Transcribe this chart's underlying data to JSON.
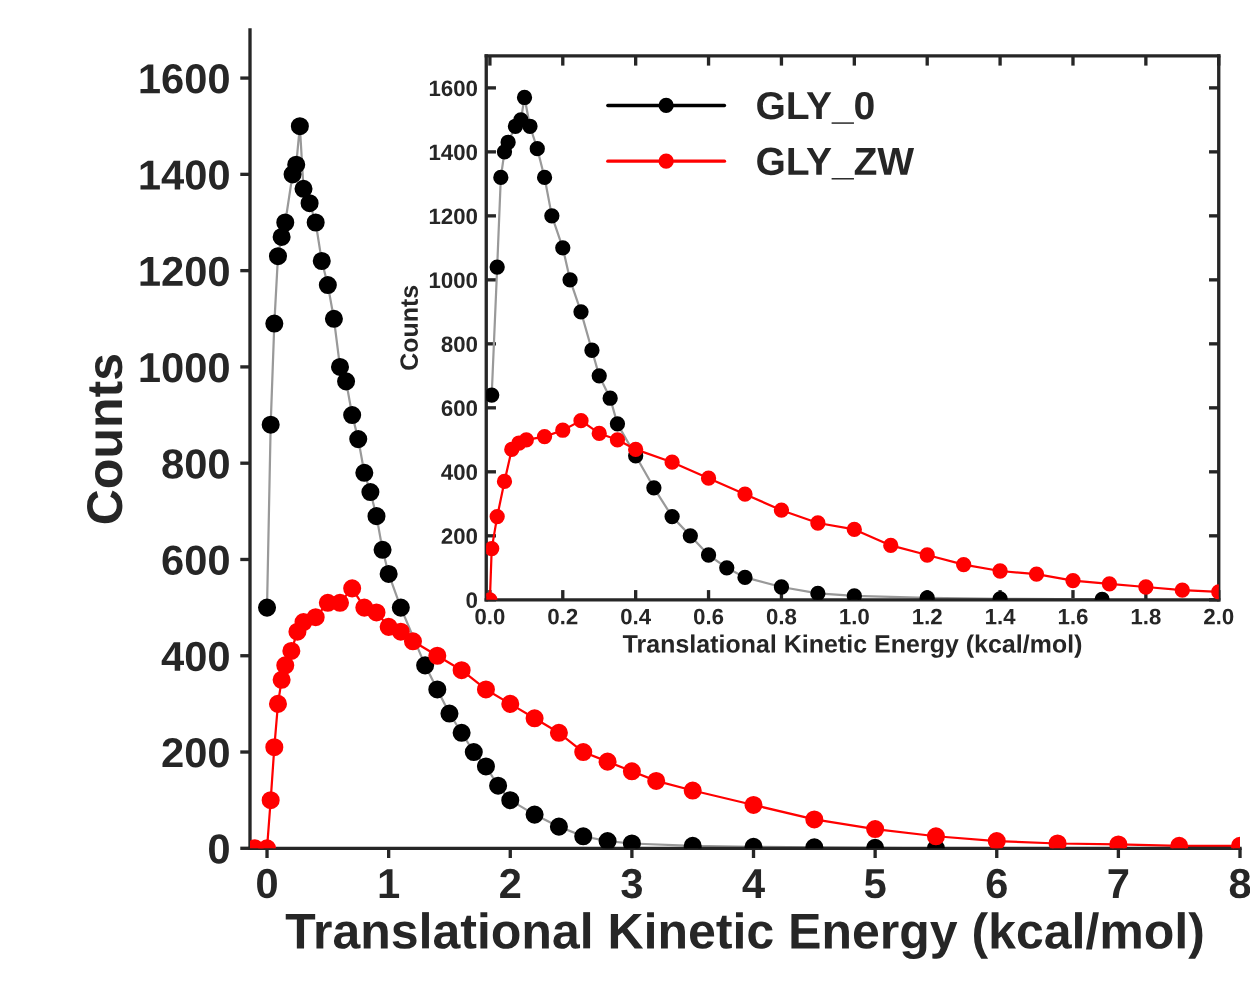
{
  "chart_data": [
    {
      "type": "line",
      "xlabel": "Translational Kinetic Energy (kcal/mol)",
      "ylabel": "Counts",
      "marker": "circle",
      "line_style": "solid",
      "legend": false,
      "grid": false,
      "xlim": [
        -0.14,
        8
      ],
      "ylim": [
        0,
        1700
      ],
      "xticks": [
        0,
        1,
        2,
        3,
        4,
        5,
        6,
        7,
        8
      ],
      "yticks": [
        0,
        200,
        400,
        600,
        800,
        1000,
        1200,
        1400,
        1600
      ],
      "series": [
        {
          "color": "#000000",
          "x": [
            0,
            0.03,
            0.06,
            0.09,
            0.12,
            0.15,
            0.21,
            0.24,
            0.27,
            0.3,
            0.35,
            0.4,
            0.45,
            0.5,
            0.55,
            0.6,
            0.65,
            0.7,
            0.75,
            0.8,
            0.85,
            0.9,
            0.95,
            1.0,
            1.1,
            1.3,
            1.4,
            1.5,
            1.6,
            1.7,
            1.8,
            1.9,
            2.0,
            2.2,
            2.4,
            2.6,
            2.8,
            3.0,
            3.5,
            4.0,
            4.5,
            5.0,
            5.5
          ],
          "values": [
            500,
            880,
            1090,
            1230,
            1270,
            1300,
            1400,
            1420,
            1500,
            1370,
            1340,
            1300,
            1220,
            1170,
            1100,
            1000,
            970,
            900,
            850,
            780,
            740,
            690,
            620,
            570,
            500,
            380,
            330,
            280,
            240,
            200,
            170,
            130,
            100,
            70,
            45,
            25,
            15,
            10,
            5,
            3,
            2,
            1,
            0
          ]
        },
        {
          "color": "#ff0000",
          "x": [
            -0.1,
            0,
            0.03,
            0.06,
            0.09,
            0.12,
            0.15,
            0.2,
            0.25,
            0.3,
            0.4,
            0.5,
            0.6,
            0.7,
            0.8,
            0.9,
            1.0,
            1.1,
            1.2,
            1.4,
            1.6,
            1.8,
            2.0,
            2.2,
            2.4,
            2.6,
            2.8,
            3.0,
            3.2,
            3.5,
            4.0,
            4.5,
            5.0,
            5.5,
            6.0,
            6.5,
            7.0,
            7.5,
            8.0
          ],
          "values": [
            0,
            0,
            100,
            210,
            300,
            350,
            380,
            410,
            450,
            470,
            480,
            510,
            510,
            540,
            500,
            490,
            460,
            450,
            430,
            400,
            370,
            330,
            300,
            270,
            240,
            200,
            180,
            160,
            140,
            120,
            90,
            60,
            40,
            25,
            15,
            10,
            8,
            5,
            5
          ]
        }
      ]
    },
    {
      "type": "line",
      "xlabel": "Translational Kinetic Energy (kcal/mol)",
      "ylabel": "Counts",
      "marker": "circle",
      "line_style": "solid",
      "legend": "top",
      "grid": false,
      "xlim": [
        -0.01,
        2
      ],
      "ylim": [
        0,
        1700
      ],
      "xticks": [
        {
          "value": 0,
          "label": "0.0"
        },
        0.2,
        0.4,
        0.6,
        0.8,
        {
          "value": 1,
          "label": "1.0"
        },
        1.2,
        1.4,
        1.6,
        1.8,
        {
          "value": 2,
          "label": "2.0"
        }
      ],
      "yticks": [
        0,
        200,
        400,
        600,
        800,
        1000,
        1200,
        1400,
        1600
      ],
      "series": [
        {
          "name": "GLY_0",
          "color": "#000000",
          "x": [
            0.005,
            0.02,
            0.03,
            0.04,
            0.05,
            0.07,
            0.085,
            0.095,
            0.11,
            0.13,
            0.15,
            0.17,
            0.2,
            0.22,
            0.25,
            0.28,
            0.3,
            0.33,
            0.35,
            0.4,
            0.45,
            0.5,
            0.55,
            0.6,
            0.65,
            0.7,
            0.8,
            0.9,
            1.0,
            1.2,
            1.4,
            1.68
          ],
          "values": [
            640,
            1040,
            1320,
            1400,
            1430,
            1480,
            1500,
            1570,
            1480,
            1410,
            1320,
            1200,
            1100,
            1000,
            900,
            780,
            700,
            630,
            550,
            450,
            350,
            260,
            200,
            140,
            100,
            70,
            40,
            20,
            12,
            6,
            3,
            1
          ]
        },
        {
          "name": "GLY_ZW",
          "color": "#ff0000",
          "x": [
            0,
            0.005,
            0.02,
            0.04,
            0.06,
            0.08,
            0.1,
            0.15,
            0.2,
            0.25,
            0.3,
            0.35,
            0.4,
            0.5,
            0.6,
            0.7,
            0.8,
            0.9,
            1.0,
            1.1,
            1.2,
            1.3,
            1.4,
            1.5,
            1.6,
            1.7,
            1.8,
            1.9,
            2.0
          ],
          "values": [
            0,
            160,
            260,
            370,
            470,
            490,
            500,
            510,
            530,
            560,
            520,
            500,
            470,
            430,
            380,
            330,
            280,
            240,
            220,
            170,
            140,
            110,
            90,
            80,
            60,
            50,
            40,
            30,
            25
          ]
        }
      ]
    }
  ]
}
